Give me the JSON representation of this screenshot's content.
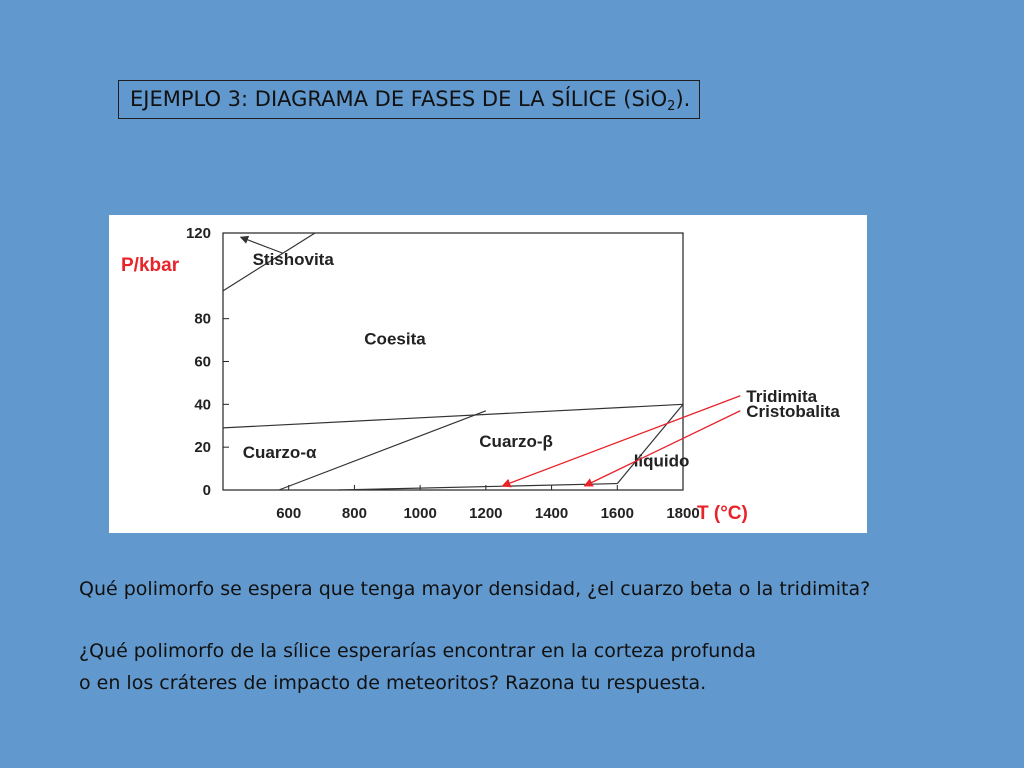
{
  "slide": {
    "title_main": "EJEMPLO 3: DIAGRAMA DE FASES DE LA SÍLICE (SiO",
    "title_sub": "2",
    "title_end": ").",
    "question1": "Qué polimorfo se espera que tenga mayor densidad, ¿el cuarzo beta o la tridimita?",
    "question2_line1": "¿Qué polimorfo de la sílice esperarías encontrar en la corteza profunda",
    "question2_line2": "o en los cráteres de impacto de meteoritos? Razona tu respuesta."
  },
  "colors": {
    "background": "#6198cd",
    "axis_label": "#e8232a",
    "arrow": "#e8232a",
    "line": "#333333"
  },
  "chart_data": {
    "type": "diagram",
    "xlabel": "T (°C)",
    "ylabel": "P/kbar",
    "xlim": [
      400,
      1800
    ],
    "ylim": [
      0,
      120
    ],
    "x_ticks": [
      "600",
      "800",
      "1000",
      "1200",
      "1400",
      "1600",
      "1800"
    ],
    "y_ticks": [
      "0",
      "20",
      "40",
      "60",
      "80",
      "120"
    ],
    "grid": false,
    "boundaries": [
      {
        "name": "stishovita-coesita",
        "points": [
          [
            400,
            93
          ],
          [
            680,
            120
          ]
        ]
      },
      {
        "name": "coesita-cuarzo",
        "points": [
          [
            400,
            29
          ],
          [
            1800,
            40
          ]
        ]
      },
      {
        "name": "cuarzo-alfa-beta",
        "points": [
          [
            570,
            0
          ],
          [
            1200,
            37
          ]
        ]
      },
      {
        "name": "cuarzo-tridimita-cristobalita",
        "points": [
          [
            750,
            0
          ],
          [
            1600,
            3
          ]
        ]
      },
      {
        "name": "solidus",
        "points": [
          [
            1600,
            3
          ],
          [
            1800,
            40
          ]
        ]
      }
    ],
    "phases": [
      {
        "label": "Stishovita",
        "x": 490,
        "y": 105
      },
      {
        "label": "Coesita",
        "x": 830,
        "y": 68
      },
      {
        "label": "Cuarzo-α",
        "x": 460,
        "y": 15
      },
      {
        "label": "Cuarzo-β",
        "x": 1180,
        "y": 20
      },
      {
        "label": "liquido",
        "x": 1650,
        "y": 11
      }
    ],
    "annotations": [
      {
        "label": "Tridimita",
        "from": [
          1950,
          44
        ],
        "to": [
          1250,
          0
        ]
      },
      {
        "label": "Cristobalita",
        "from": [
          1950,
          37
        ],
        "to": [
          1500,
          0
        ]
      }
    ]
  }
}
